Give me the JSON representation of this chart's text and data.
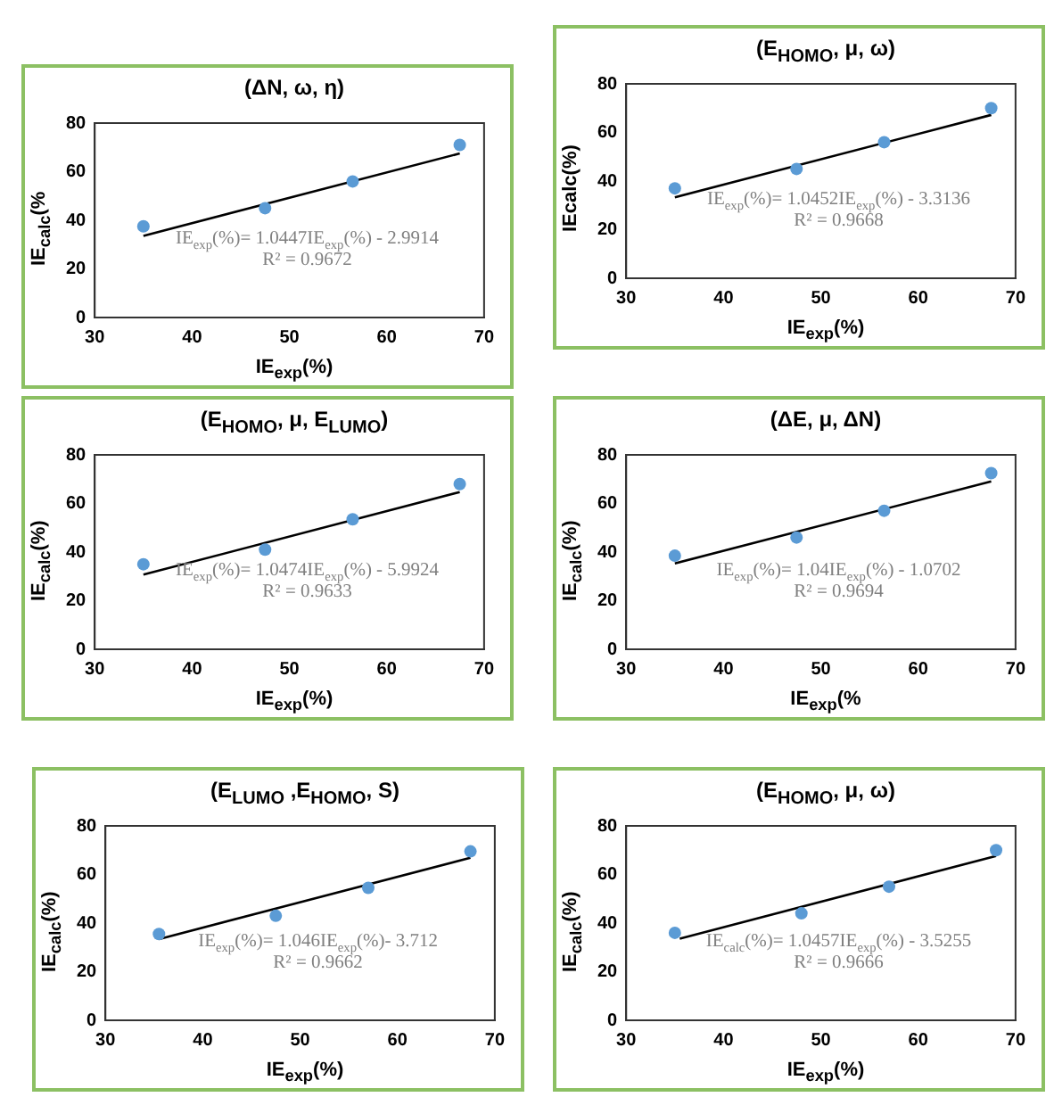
{
  "chart_data": [
    {
      "type": "scatter",
      "title": "(ΔN, ω, η)",
      "xlabel": "IE$_{exp}$(%)",
      "ylabel": "IE$_{calc}$(%",
      "xlim": [
        30,
        70
      ],
      "xticks": [
        30,
        40,
        50,
        60,
        70
      ],
      "ylim": [
        0,
        80
      ],
      "yticks": [
        0,
        20,
        40,
        60,
        80
      ],
      "grid": false,
      "legend": false,
      "annotations": [
        "IE$_{exp}$(%)= 1.0447IE$_{exp}$(%) - 2.9914",
        "R² = 0.9672"
      ],
      "series": [
        {
          "color": "#5b9bd5",
          "marker": "circle",
          "x": [
            35,
            47.5,
            56.5,
            67.5
          ],
          "values": [
            37.5,
            45,
            56,
            71
          ]
        },
        {
          "type": "line",
          "marker": "none",
          "color": "#000000",
          "x": [
            35,
            67.5
          ],
          "values": [
            33.6,
            67.5
          ]
        }
      ]
    },
    {
      "type": "scatter",
      "title": "(E$_{HOMO}$, μ, ω)",
      "xlabel": "IE$_{exp}$(%)",
      "ylabel": "IEcalc(%)",
      "xlim": [
        30,
        70
      ],
      "xticks": [
        30,
        40,
        50,
        60,
        70
      ],
      "ylim": [
        0,
        80
      ],
      "yticks": [
        0,
        20,
        40,
        60,
        80
      ],
      "grid": false,
      "legend": false,
      "annotations": [
        "IE$_{exp}$(%)= 1.0452IE$_{exp}$(%) - 3.3136",
        "R² = 0.9668"
      ],
      "series": [
        {
          "color": "#5b9bd5",
          "marker": "circle",
          "x": [
            35,
            47.5,
            56.5,
            67.5
          ],
          "values": [
            37,
            45,
            56,
            70
          ]
        },
        {
          "type": "line",
          "marker": "none",
          "color": "#000000",
          "x": [
            35,
            67.5
          ],
          "values": [
            33.3,
            67.2
          ]
        }
      ]
    },
    {
      "type": "scatter",
      "title": "(E$_{HOMO}$, μ, E$_{LUMO}$)",
      "xlabel": "IE$_{exp}$(%)",
      "ylabel": "IE$_{calc}$(%)",
      "xlim": [
        30,
        70
      ],
      "xticks": [
        30,
        40,
        50,
        60,
        70
      ],
      "ylim": [
        0,
        80
      ],
      "yticks": [
        0,
        20,
        40,
        60,
        80
      ],
      "grid": false,
      "legend": false,
      "annotations": [
        "IE$_{exp}$(%)= 1.0474IE$_{exp}$(%) - 5.9924",
        "R² = 0.9633"
      ],
      "series": [
        {
          "color": "#5b9bd5",
          "marker": "circle",
          "x": [
            35,
            47.5,
            56.5,
            67.5
          ],
          "values": [
            35,
            41,
            53.5,
            68
          ]
        },
        {
          "type": "line",
          "marker": "none",
          "color": "#000000",
          "x": [
            35,
            67.5
          ],
          "values": [
            30.7,
            64.7
          ]
        }
      ]
    },
    {
      "type": "scatter",
      "title": "(ΔE, μ, ΔN)",
      "xlabel": "IE$_{exp}$(%",
      "ylabel": "IE$_{calc}$(%)",
      "xlim": [
        30,
        70
      ],
      "xticks": [
        30,
        40,
        50,
        60,
        70
      ],
      "ylim": [
        0,
        80
      ],
      "yticks": [
        0,
        20,
        40,
        60,
        80
      ],
      "grid": false,
      "legend": false,
      "annotations": [
        "IE$_{exp}$(%)= 1.04IE$_{exp}$(%) - 1.0702",
        "R² = 0.9694"
      ],
      "series": [
        {
          "color": "#5b9bd5",
          "marker": "circle",
          "x": [
            35,
            47.5,
            56.5,
            67.5
          ],
          "values": [
            38.5,
            46,
            57,
            72.5
          ]
        },
        {
          "type": "line",
          "marker": "none",
          "color": "#000000",
          "x": [
            35,
            67.5
          ],
          "values": [
            35.3,
            69.1
          ]
        }
      ]
    },
    {
      "type": "scatter",
      "title": "(E$_{LUMO}$ ,E$_{HOMO}$, S)",
      "xlabel": "IE$_{exp}$(%)",
      "ylabel": "IE$_{calc}$(%)",
      "xlim": [
        30,
        70
      ],
      "xticks": [
        30,
        40,
        50,
        60,
        70
      ],
      "ylim": [
        0,
        80
      ],
      "yticks": [
        0,
        20,
        40,
        60,
        80
      ],
      "grid": false,
      "legend": false,
      "annotations": [
        "IE$_{exp}$(%)= 1.046IE$_{exp}$(%)- 3.712",
        "R² = 0.9662"
      ],
      "series": [
        {
          "color": "#5b9bd5",
          "marker": "circle",
          "x": [
            35.5,
            47.5,
            57,
            67.5
          ],
          "values": [
            35.5,
            43,
            54.5,
            69.5
          ]
        },
        {
          "type": "line",
          "marker": "none",
          "color": "#000000",
          "x": [
            35.5,
            67.5
          ],
          "values": [
            33.4,
            66.9
          ]
        }
      ]
    },
    {
      "type": "scatter",
      "title": "(E$_{HOMO}$, μ, ω)",
      "xlabel": "IE$_{exp}$(%)",
      "ylabel": "IE$_{calc}$(%)",
      "xlim": [
        30,
        70
      ],
      "xticks": [
        30,
        40,
        50,
        60,
        70
      ],
      "ylim": [
        0,
        80
      ],
      "yticks": [
        0,
        20,
        40,
        60,
        80
      ],
      "grid": false,
      "legend": false,
      "annotations": [
        "IE$_{calc}$(%)= 1.0457IE$_{exp}$(%) - 3.5255",
        "R² = 0.9666"
      ],
      "series": [
        {
          "color": "#5b9bd5",
          "marker": "circle",
          "x": [
            35,
            48,
            57,
            68
          ],
          "values": [
            36,
            44,
            55,
            70
          ]
        },
        {
          "type": "line",
          "marker": "none",
          "color": "#000000",
          "x": [
            35.5,
            68
          ],
          "values": [
            33.6,
            67.6
          ]
        }
      ]
    }
  ]
}
